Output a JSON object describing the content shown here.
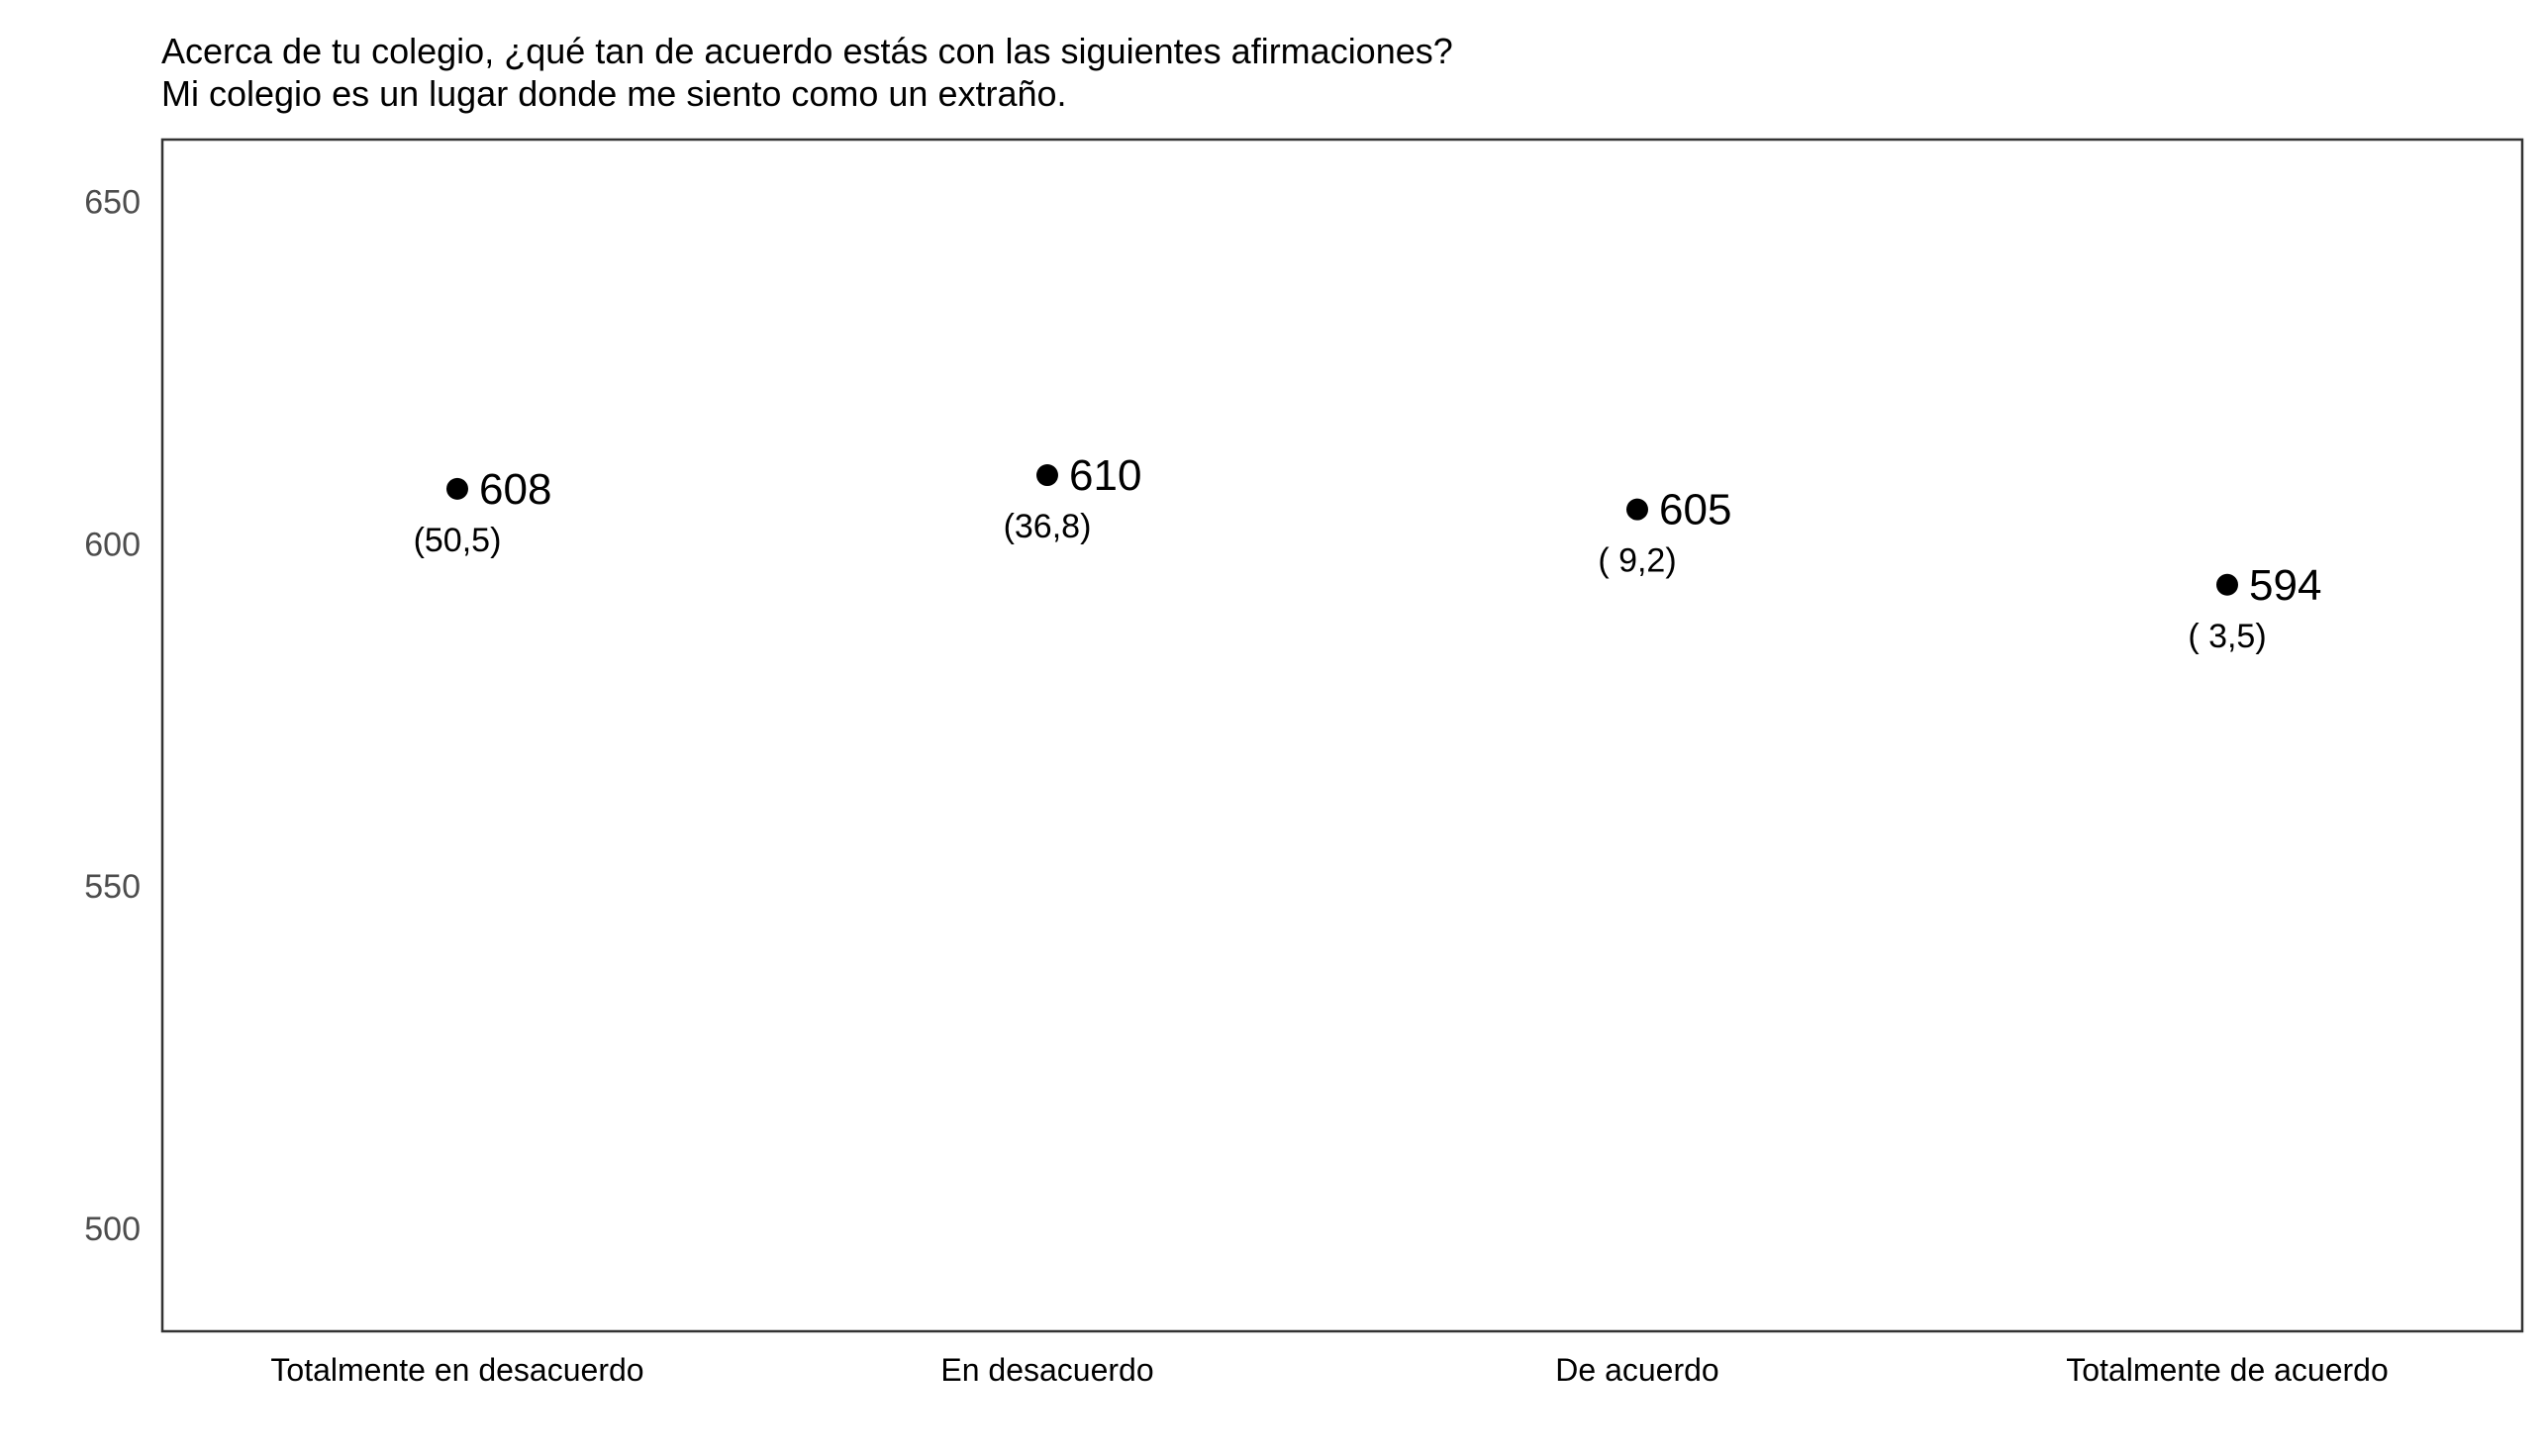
{
  "chart_data": {
    "type": "scatter",
    "title": "Acerca de tu colegio, ¿qué tan de acuerdo estás con las siguientes afirmaciones?",
    "subtitle": "Mi colegio es un lugar donde me siento como un extraño.",
    "xlabel": "",
    "ylabel": "",
    "ylim": [
      485,
      659
    ],
    "yticks": [
      500,
      550,
      600,
      650
    ],
    "categories": [
      "Totalmente en desacuerdo",
      "En desacuerdo",
      "De acuerdo",
      "Totalmente de acuerdo"
    ],
    "values": [
      608,
      610,
      605,
      594
    ],
    "value_labels": [
      "608",
      "610",
      "605",
      "594"
    ],
    "percent_labels": [
      "(50,5)",
      "(36,8)",
      "( 9,2)",
      "( 3,5)"
    ],
    "grid": false,
    "legend": "none",
    "point_color": "#000000"
  }
}
